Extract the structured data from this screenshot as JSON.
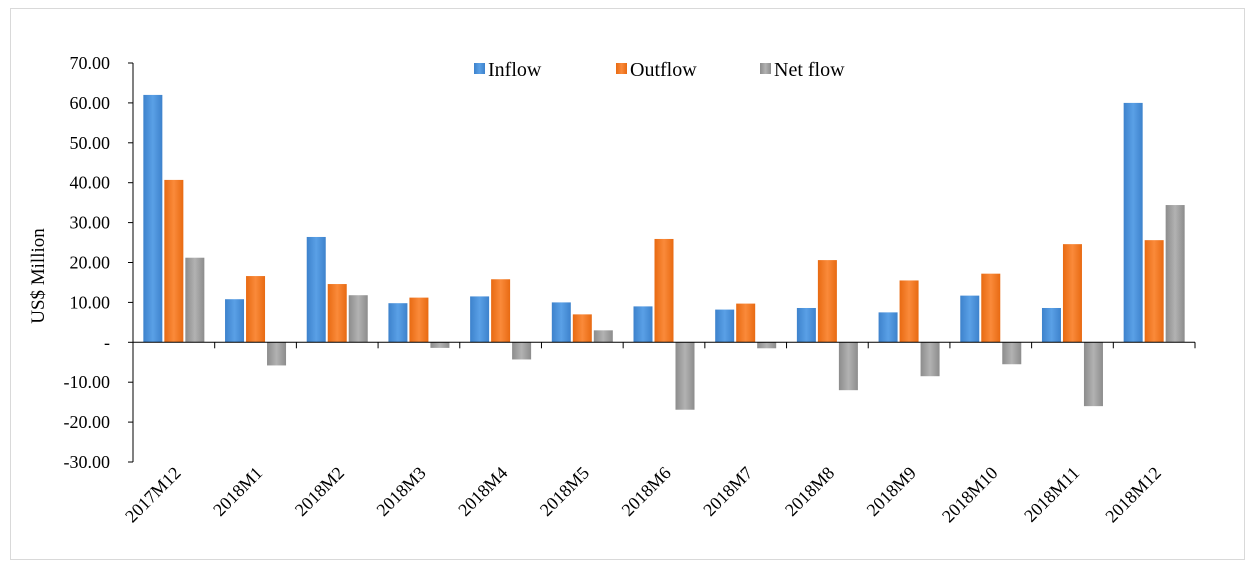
{
  "chart_data": {
    "type": "bar",
    "title": "",
    "xlabel": "",
    "ylabel": "US$ Million",
    "ylim": [
      -30,
      70
    ],
    "y_ticks": [
      {
        "value": 70,
        "label": "70.00"
      },
      {
        "value": 60,
        "label": "60.00"
      },
      {
        "value": 50,
        "label": "50.00"
      },
      {
        "value": 40,
        "label": "40.00"
      },
      {
        "value": 30,
        "label": "30.00"
      },
      {
        "value": 20,
        "label": "20.00"
      },
      {
        "value": 10,
        "label": "10.00"
      },
      {
        "value": 0,
        "label": "-"
      },
      {
        "value": -10,
        "label": "-10.00"
      },
      {
        "value": -20,
        "label": "-20.00"
      },
      {
        "value": -30,
        "label": "-30.00"
      }
    ],
    "categories": [
      "2017M12",
      "2018M1",
      "2018M2",
      "2018M3",
      "2018M4",
      "2018M5",
      "2018M6",
      "2018M7",
      "2018M8",
      "2018M9",
      "2018M10",
      "2018M11",
      "2018M12"
    ],
    "series": [
      {
        "name": "Inflow",
        "color": "#4a8fd6",
        "values": [
          62.0,
          10.8,
          26.4,
          9.8,
          11.5,
          10.0,
          9.0,
          8.2,
          8.6,
          7.5,
          11.7,
          8.6,
          60.0
        ]
      },
      {
        "name": "Outflow",
        "color": "#f07522",
        "values": [
          40.7,
          16.6,
          14.6,
          11.2,
          15.8,
          7.0,
          25.9,
          9.7,
          20.6,
          15.5,
          17.2,
          24.6,
          25.6
        ]
      },
      {
        "name": "Net flow",
        "color": "#9a9a9a",
        "values": [
          21.2,
          -5.8,
          11.8,
          -1.4,
          -4.3,
          3.0,
          -16.9,
          -1.5,
          -12.0,
          -8.5,
          -5.5,
          -16.0,
          34.4
        ]
      }
    ],
    "legend_position": "top-center",
    "grid": false
  }
}
